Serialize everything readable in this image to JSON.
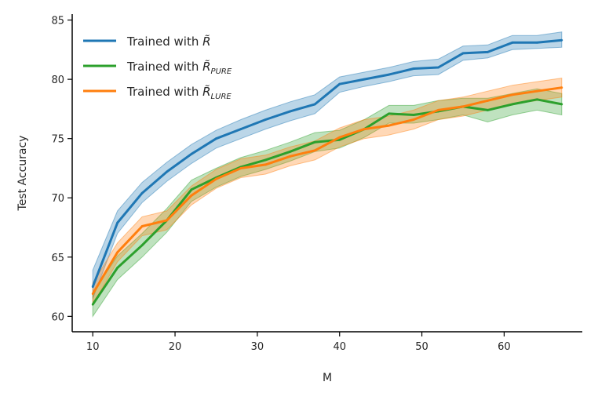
{
  "chart_data": {
    "type": "line",
    "title": "",
    "xlabel": "M",
    "ylabel": "Test Accuracy",
    "xlim": [
      7.5,
      69.5
    ],
    "ylim": [
      58.7,
      85.5
    ],
    "xticks": [
      10,
      20,
      30,
      40,
      50,
      60
    ],
    "yticks": [
      60,
      65,
      70,
      75,
      80,
      85
    ],
    "grid": false,
    "legend_position": "top-left",
    "x": [
      10,
      13,
      16,
      19,
      22,
      25,
      28,
      31,
      34,
      37,
      40,
      43,
      46,
      49,
      52,
      55,
      58,
      61,
      64,
      67
    ],
    "series": [
      {
        "name": "Trained with R̃",
        "legend_symbol": "R̃",
        "legend_prefix": "Trained with ",
        "legend_subscript": "",
        "color": "#1f77b4",
        "values": [
          62.5,
          67.9,
          70.4,
          72.2,
          73.7,
          75.0,
          75.8,
          76.6,
          77.3,
          77.9,
          79.6,
          80.0,
          80.4,
          80.9,
          81.0,
          82.2,
          82.3,
          83.1,
          83.1,
          83.3
        ],
        "lower": [
          61.5,
          67.0,
          69.6,
          71.4,
          72.9,
          74.2,
          75.0,
          75.8,
          76.5,
          77.1,
          78.9,
          79.4,
          79.8,
          80.3,
          80.4,
          81.6,
          81.8,
          82.5,
          82.6,
          82.7
        ],
        "upper": [
          63.9,
          68.9,
          71.3,
          73.0,
          74.5,
          75.7,
          76.6,
          77.4,
          78.1,
          78.7,
          80.2,
          80.6,
          81.0,
          81.5,
          81.7,
          82.8,
          82.9,
          83.7,
          83.7,
          84.0
        ]
      },
      {
        "name": "Trained with R̃ PURE",
        "legend_symbol": "R̃",
        "legend_prefix": "Trained with ",
        "legend_subscript": "PURE",
        "color": "#2ca02c",
        "values": [
          61.0,
          64.1,
          66.0,
          68.1,
          70.7,
          71.7,
          72.6,
          73.2,
          73.9,
          74.7,
          74.9,
          75.8,
          77.1,
          77.0,
          77.3,
          77.7,
          77.4,
          77.9,
          78.3,
          77.9
        ],
        "lower": [
          60.0,
          63.1,
          65.0,
          67.1,
          69.7,
          70.9,
          71.8,
          72.4,
          73.1,
          73.9,
          74.2,
          75.1,
          76.3,
          76.3,
          76.6,
          77.0,
          76.4,
          77.0,
          77.4,
          77.0
        ],
        "upper": [
          62.0,
          65.1,
          67.0,
          69.1,
          71.5,
          72.5,
          73.4,
          74.0,
          74.7,
          75.5,
          75.7,
          76.6,
          77.8,
          77.8,
          78.2,
          78.4,
          78.4,
          78.8,
          79.2,
          78.8
        ]
      },
      {
        "name": "Trained with R̃ LURE",
        "legend_symbol": "R̃",
        "legend_prefix": "Trained with ",
        "legend_subscript": "LURE",
        "color": "#ff7f0e",
        "values": [
          61.9,
          65.4,
          67.6,
          68.1,
          70.2,
          71.6,
          72.5,
          72.8,
          73.5,
          74.0,
          75.1,
          75.8,
          76.1,
          76.6,
          77.4,
          77.7,
          78.2,
          78.7,
          79.0,
          79.3
        ],
        "lower": [
          61.0,
          64.6,
          66.8,
          67.3,
          69.4,
          70.8,
          71.7,
          72.0,
          72.7,
          73.2,
          74.3,
          75.0,
          75.3,
          75.8,
          76.6,
          76.9,
          77.4,
          77.9,
          78.2,
          78.5
        ],
        "upper": [
          62.8,
          66.2,
          68.4,
          68.9,
          71.0,
          72.4,
          73.3,
          73.6,
          74.3,
          74.8,
          75.9,
          76.6,
          76.9,
          77.4,
          78.2,
          78.5,
          79.0,
          79.5,
          79.8,
          80.1
        ]
      }
    ]
  }
}
